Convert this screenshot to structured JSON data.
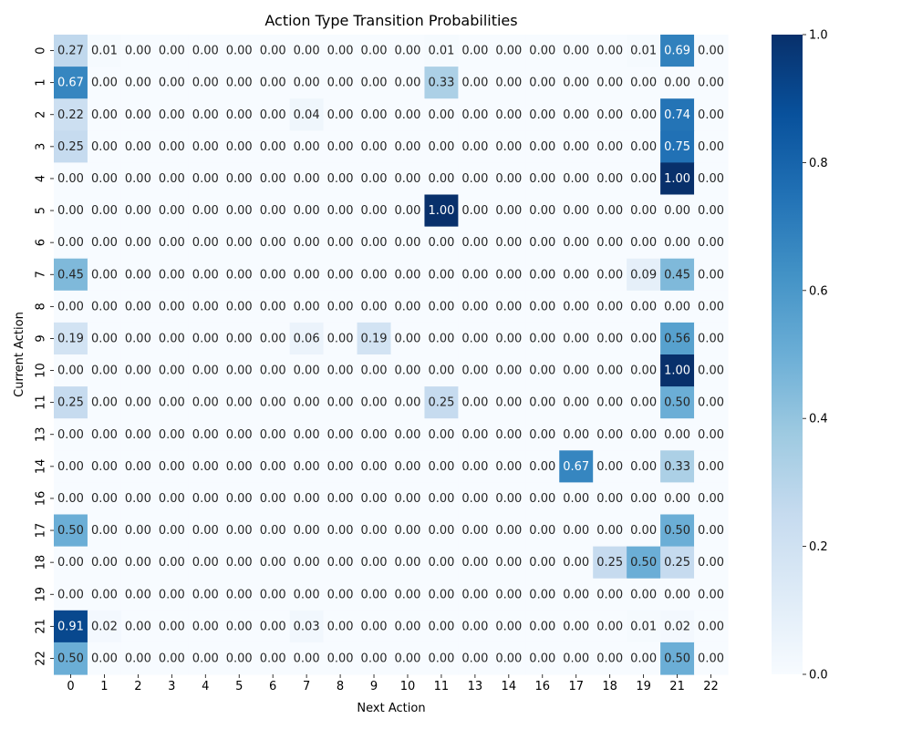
{
  "chart_data": {
    "type": "heatmap",
    "title": "Action Type Transition Probabilities",
    "xlabel": "Next Action",
    "ylabel": "Current Action",
    "x_categories": [
      "0",
      "1",
      "2",
      "3",
      "4",
      "5",
      "6",
      "7",
      "8",
      "9",
      "10",
      "11",
      "13",
      "14",
      "16",
      "17",
      "18",
      "19",
      "21",
      "22"
    ],
    "y_categories": [
      "0",
      "1",
      "2",
      "3",
      "4",
      "5",
      "6",
      "7",
      "8",
      "9",
      "10",
      "11",
      "13",
      "14",
      "16",
      "17",
      "18",
      "19",
      "21",
      "22"
    ],
    "values": [
      [
        0.27,
        0.01,
        0.0,
        0.0,
        0.0,
        0.0,
        0.0,
        0.0,
        0.0,
        0.0,
        0.0,
        0.01,
        0.0,
        0.0,
        0.0,
        0.0,
        0.0,
        0.01,
        0.69,
        0.0
      ],
      [
        0.67,
        0.0,
        0.0,
        0.0,
        0.0,
        0.0,
        0.0,
        0.0,
        0.0,
        0.0,
        0.0,
        0.33,
        0.0,
        0.0,
        0.0,
        0.0,
        0.0,
        0.0,
        0.0,
        0.0
      ],
      [
        0.22,
        0.0,
        0.0,
        0.0,
        0.0,
        0.0,
        0.0,
        0.04,
        0.0,
        0.0,
        0.0,
        0.0,
        0.0,
        0.0,
        0.0,
        0.0,
        0.0,
        0.0,
        0.74,
        0.0
      ],
      [
        0.25,
        0.0,
        0.0,
        0.0,
        0.0,
        0.0,
        0.0,
        0.0,
        0.0,
        0.0,
        0.0,
        0.0,
        0.0,
        0.0,
        0.0,
        0.0,
        0.0,
        0.0,
        0.75,
        0.0
      ],
      [
        0.0,
        0.0,
        0.0,
        0.0,
        0.0,
        0.0,
        0.0,
        0.0,
        0.0,
        0.0,
        0.0,
        0.0,
        0.0,
        0.0,
        0.0,
        0.0,
        0.0,
        0.0,
        1.0,
        0.0
      ],
      [
        0.0,
        0.0,
        0.0,
        0.0,
        0.0,
        0.0,
        0.0,
        0.0,
        0.0,
        0.0,
        0.0,
        1.0,
        0.0,
        0.0,
        0.0,
        0.0,
        0.0,
        0.0,
        0.0,
        0.0
      ],
      [
        0.0,
        0.0,
        0.0,
        0.0,
        0.0,
        0.0,
        0.0,
        0.0,
        0.0,
        0.0,
        0.0,
        0.0,
        0.0,
        0.0,
        0.0,
        0.0,
        0.0,
        0.0,
        0.0,
        0.0
      ],
      [
        0.45,
        0.0,
        0.0,
        0.0,
        0.0,
        0.0,
        0.0,
        0.0,
        0.0,
        0.0,
        0.0,
        0.0,
        0.0,
        0.0,
        0.0,
        0.0,
        0.0,
        0.09,
        0.45,
        0.0
      ],
      [
        0.0,
        0.0,
        0.0,
        0.0,
        0.0,
        0.0,
        0.0,
        0.0,
        0.0,
        0.0,
        0.0,
        0.0,
        0.0,
        0.0,
        0.0,
        0.0,
        0.0,
        0.0,
        0.0,
        0.0
      ],
      [
        0.19,
        0.0,
        0.0,
        0.0,
        0.0,
        0.0,
        0.0,
        0.06,
        0.0,
        0.19,
        0.0,
        0.0,
        0.0,
        0.0,
        0.0,
        0.0,
        0.0,
        0.0,
        0.56,
        0.0
      ],
      [
        0.0,
        0.0,
        0.0,
        0.0,
        0.0,
        0.0,
        0.0,
        0.0,
        0.0,
        0.0,
        0.0,
        0.0,
        0.0,
        0.0,
        0.0,
        0.0,
        0.0,
        0.0,
        1.0,
        0.0
      ],
      [
        0.25,
        0.0,
        0.0,
        0.0,
        0.0,
        0.0,
        0.0,
        0.0,
        0.0,
        0.0,
        0.0,
        0.25,
        0.0,
        0.0,
        0.0,
        0.0,
        0.0,
        0.0,
        0.5,
        0.0
      ],
      [
        0.0,
        0.0,
        0.0,
        0.0,
        0.0,
        0.0,
        0.0,
        0.0,
        0.0,
        0.0,
        0.0,
        0.0,
        0.0,
        0.0,
        0.0,
        0.0,
        0.0,
        0.0,
        0.0,
        0.0
      ],
      [
        0.0,
        0.0,
        0.0,
        0.0,
        0.0,
        0.0,
        0.0,
        0.0,
        0.0,
        0.0,
        0.0,
        0.0,
        0.0,
        0.0,
        0.0,
        0.67,
        0.0,
        0.0,
        0.33,
        0.0
      ],
      [
        0.0,
        0.0,
        0.0,
        0.0,
        0.0,
        0.0,
        0.0,
        0.0,
        0.0,
        0.0,
        0.0,
        0.0,
        0.0,
        0.0,
        0.0,
        0.0,
        0.0,
        0.0,
        0.0,
        0.0
      ],
      [
        0.5,
        0.0,
        0.0,
        0.0,
        0.0,
        0.0,
        0.0,
        0.0,
        0.0,
        0.0,
        0.0,
        0.0,
        0.0,
        0.0,
        0.0,
        0.0,
        0.0,
        0.0,
        0.5,
        0.0
      ],
      [
        0.0,
        0.0,
        0.0,
        0.0,
        0.0,
        0.0,
        0.0,
        0.0,
        0.0,
        0.0,
        0.0,
        0.0,
        0.0,
        0.0,
        0.0,
        0.0,
        0.25,
        0.5,
        0.25,
        0.0
      ],
      [
        0.0,
        0.0,
        0.0,
        0.0,
        0.0,
        0.0,
        0.0,
        0.0,
        0.0,
        0.0,
        0.0,
        0.0,
        0.0,
        0.0,
        0.0,
        0.0,
        0.0,
        0.0,
        0.0,
        0.0
      ],
      [
        0.91,
        0.02,
        0.0,
        0.0,
        0.0,
        0.0,
        0.0,
        0.03,
        0.0,
        0.0,
        0.0,
        0.0,
        0.0,
        0.0,
        0.0,
        0.0,
        0.0,
        0.01,
        0.02,
        0.0
      ],
      [
        0.5,
        0.0,
        0.0,
        0.0,
        0.0,
        0.0,
        0.0,
        0.0,
        0.0,
        0.0,
        0.0,
        0.0,
        0.0,
        0.0,
        0.0,
        0.0,
        0.0,
        0.0,
        0.5,
        0.0
      ]
    ],
    "value_format": "0.00",
    "colormap": "Blues",
    "colormap_stops": [
      "#f7fbff",
      "#deebf7",
      "#c6dbef",
      "#9ecae1",
      "#6baed6",
      "#4292c6",
      "#2171b5",
      "#08519c",
      "#08306b"
    ],
    "vmin": 0.0,
    "vmax": 1.0,
    "colorbar_ticks": [
      "0.0",
      "0.2",
      "0.4",
      "0.6",
      "0.8",
      "1.0"
    ],
    "annotation_light_color": "#ffffff",
    "annotation_dark_color": "#262626"
  }
}
